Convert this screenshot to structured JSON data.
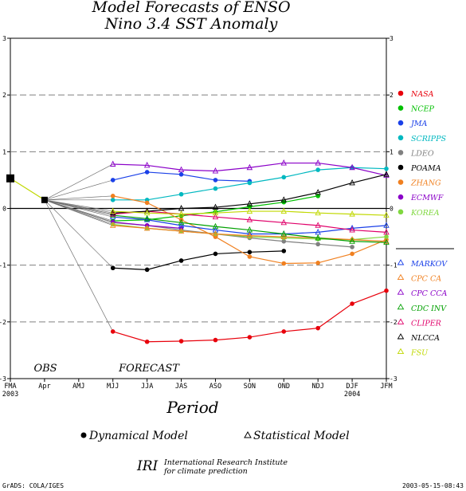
{
  "chart_data": {
    "type": "line",
    "title": "Model Forecasts of ENSO",
    "subtitle": "Nino 3.4 SST Anomaly",
    "xlabel": "Period",
    "ylim": [
      -3,
      3
    ],
    "y_ticks": [
      "3",
      "2",
      "1",
      "0",
      "-1",
      "-2",
      "-3"
    ],
    "x_ticks": [
      "FMA",
      "Apr",
      "AMJ",
      "MJJ",
      "JJA",
      "JAS",
      "ASO",
      "SON",
      "OND",
      "NDJ",
      "DJF",
      "JFM"
    ],
    "x_year_labels": [
      {
        "at": "FMA",
        "text": "2003"
      },
      {
        "at": "DJF",
        "text": "2004"
      }
    ],
    "grid": "dashed horizontal at ±1, ±2",
    "obs_label": "OBS",
    "forecast_label": "FORECAST",
    "observed": [
      {
        "x": "FMA",
        "y": 0.53
      },
      {
        "x": "Apr",
        "y": 0.15
      }
    ],
    "series": [
      {
        "name": "NASA",
        "kind": "dynamical",
        "color": "#e8000b",
        "start": "MJJ",
        "values": [
          -2.17,
          -2.35,
          -2.34,
          -2.32,
          -2.27,
          -2.17,
          -2.11,
          -1.68,
          -1.45
        ]
      },
      {
        "name": "NCEP",
        "kind": "dynamical",
        "color": "#00c000",
        "start": "MJJ",
        "values": [
          -0.22,
          -0.2,
          -0.13,
          -0.06,
          0.03,
          0.11,
          0.22
        ]
      },
      {
        "name": "JMA",
        "kind": "dynamical",
        "color": "#1a40e8",
        "start": "MJJ",
        "values": [
          0.5,
          0.64,
          0.6,
          0.5,
          0.48
        ]
      },
      {
        "name": "SCRIPPS",
        "kind": "dynamical",
        "color": "#00b8c0",
        "start": "MJJ",
        "values": [
          0.15,
          0.15,
          0.25,
          0.35,
          0.45,
          0.55,
          0.68,
          0.72,
          0.7
        ]
      },
      {
        "name": "LDEO",
        "kind": "dynamical",
        "color": "#808080",
        "start": "MJJ",
        "values": [
          -0.25,
          -0.3,
          -0.38,
          -0.45,
          -0.52,
          -0.58,
          -0.63,
          -0.68
        ]
      },
      {
        "name": "POAMA",
        "kind": "dynamical",
        "color": "#000000",
        "start": "MJJ",
        "values": [
          -1.05,
          -1.08,
          -0.92,
          -0.8,
          -0.77,
          -0.75
        ]
      },
      {
        "name": "ZHANG",
        "kind": "dynamical",
        "color": "#f08020",
        "start": "MJJ",
        "values": [
          0.22,
          0.1,
          -0.2,
          -0.5,
          -0.85,
          -0.97,
          -0.96,
          -0.8,
          -0.55
        ]
      },
      {
        "name": "ECMWF",
        "kind": "dynamical",
        "color": "#8a00c8",
        "start": "MJJ",
        "values": [
          -0.24,
          -0.3,
          -0.35
        ]
      },
      {
        "name": "KOREA",
        "kind": "dynamical",
        "color": "#80d840",
        "start": "MJJ",
        "values": [
          -0.28,
          -0.35,
          -0.4,
          -0.45,
          -0.5,
          -0.52,
          -0.54,
          -0.55,
          -0.5
        ]
      },
      {
        "name": "MARKOV",
        "kind": "statistical",
        "color": "#1a40e8",
        "start": "MJJ",
        "values": [
          -0.15,
          -0.2,
          -0.3,
          -0.38,
          -0.45,
          -0.45,
          -0.42,
          -0.35,
          -0.3
        ]
      },
      {
        "name": "CPC CA",
        "kind": "statistical",
        "color": "#f08020",
        "start": "MJJ",
        "values": [
          -0.3,
          -0.35,
          -0.4,
          -0.45,
          -0.48,
          -0.5,
          -0.52,
          -0.55,
          -0.58
        ]
      },
      {
        "name": "CPC CCA",
        "kind": "statistical",
        "color": "#8a00c8",
        "start": "MJJ",
        "values": [
          0.78,
          0.76,
          0.68,
          0.66,
          0.72,
          0.8,
          0.8,
          0.72,
          0.58
        ]
      },
      {
        "name": "CDC INV",
        "kind": "statistical",
        "color": "#00a000",
        "start": "MJJ",
        "values": [
          -0.12,
          -0.18,
          -0.25,
          -0.32,
          -0.38,
          -0.45,
          -0.52,
          -0.58,
          -0.6
        ]
      },
      {
        "name": "CLIPER",
        "kind": "statistical",
        "color": "#e0006a",
        "start": "MJJ",
        "values": [
          -0.1,
          -0.05,
          -0.1,
          -0.15,
          -0.2,
          -0.25,
          -0.3,
          -0.38,
          -0.42
        ]
      },
      {
        "name": "NLCCA",
        "kind": "statistical",
        "color": "#000000",
        "start": "MJJ",
        "values": [
          -0.08,
          -0.05,
          0.0,
          0.02,
          0.08,
          0.15,
          0.28,
          0.45,
          0.6
        ]
      },
      {
        "name": "FSU",
        "kind": "statistical",
        "color": "#c0d800",
        "start": "MJJ",
        "values": [
          -0.05,
          -0.08,
          -0.1,
          -0.08,
          -0.05,
          -0.05,
          -0.08,
          -0.1,
          -0.12
        ]
      }
    ],
    "legend_position": "right",
    "legend_dynamical_label": "Dynamical Model",
    "legend_statistical_label": "Statistical Model"
  },
  "footer": {
    "org_abbrev": "IRI",
    "org_line1": "International Research Institute",
    "org_line2": "for climate prediction",
    "grads_credit": "GrADS: COLA/IGES",
    "timestamp": "2003-05-15-08:43"
  }
}
